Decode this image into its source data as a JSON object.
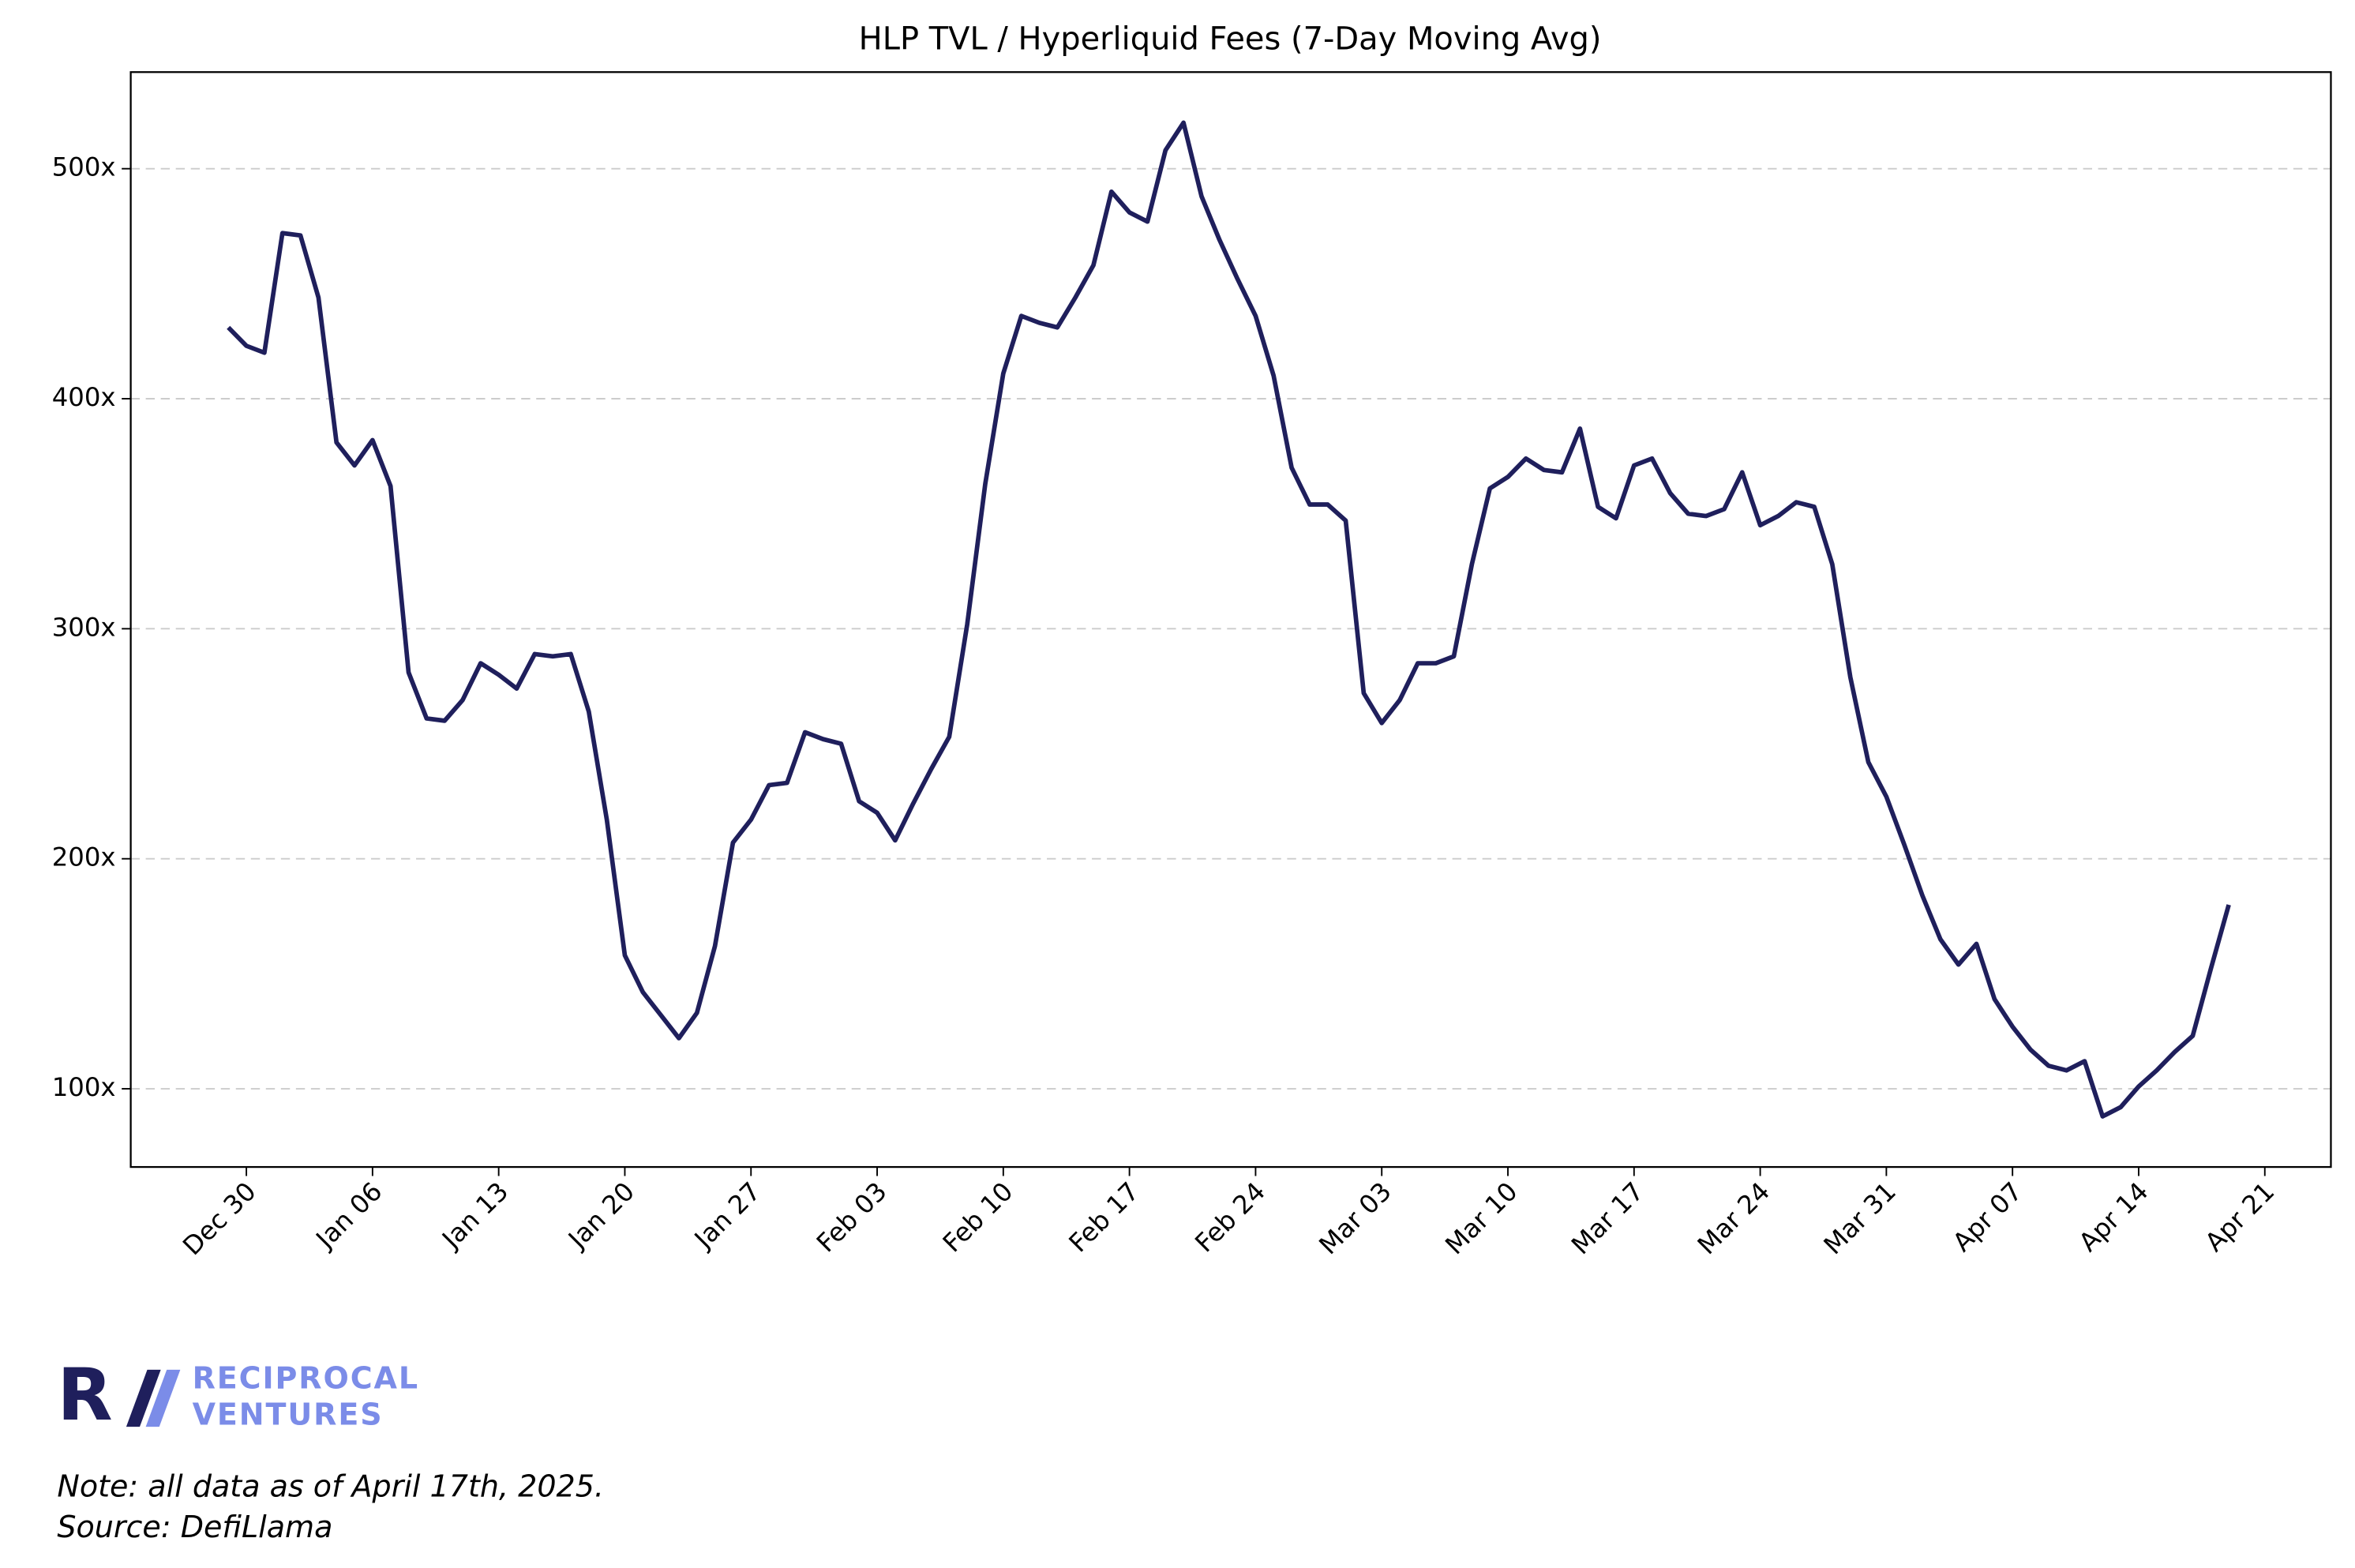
{
  "chart_data": {
    "type": "line",
    "title": "HLP TVL / Hyperliquid Fees (7-Day Moving Avg)",
    "x": [
      "Dec 29",
      "Dec 30",
      "Dec 31",
      "Jan 01",
      "Jan 02",
      "Jan 03",
      "Jan 04",
      "Jan 05",
      "Jan 06",
      "Jan 07",
      "Jan 08",
      "Jan 09",
      "Jan 10",
      "Jan 11",
      "Jan 12",
      "Jan 13",
      "Jan 14",
      "Jan 15",
      "Jan 16",
      "Jan 17",
      "Jan 18",
      "Jan 19",
      "Jan 20",
      "Jan 21",
      "Jan 22",
      "Jan 23",
      "Jan 24",
      "Jan 25",
      "Jan 26",
      "Jan 27",
      "Jan 28",
      "Jan 29",
      "Jan 30",
      "Jan 31",
      "Feb 01",
      "Feb 02",
      "Feb 03",
      "Feb 04",
      "Feb 05",
      "Feb 06",
      "Feb 07",
      "Feb 08",
      "Feb 09",
      "Feb 10",
      "Feb 11",
      "Feb 12",
      "Feb 13",
      "Feb 14",
      "Feb 15",
      "Feb 16",
      "Feb 17",
      "Feb 18",
      "Feb 19",
      "Feb 20",
      "Feb 21",
      "Feb 22",
      "Feb 23",
      "Feb 24",
      "Feb 25",
      "Feb 26",
      "Feb 27",
      "Feb 28",
      "Mar 01",
      "Mar 02",
      "Mar 03",
      "Mar 04",
      "Mar 05",
      "Mar 06",
      "Mar 07",
      "Mar 08",
      "Mar 09",
      "Mar 10",
      "Mar 11",
      "Mar 12",
      "Mar 13",
      "Mar 14",
      "Mar 15",
      "Mar 16",
      "Mar 17",
      "Mar 18",
      "Mar 19",
      "Mar 20",
      "Mar 21",
      "Mar 22",
      "Mar 23",
      "Mar 24",
      "Mar 25",
      "Mar 26",
      "Mar 27",
      "Mar 28",
      "Mar 29",
      "Mar 30",
      "Mar 31",
      "Apr 01",
      "Apr 02",
      "Apr 03",
      "Apr 04",
      "Apr 05",
      "Apr 06",
      "Apr 07",
      "Apr 08",
      "Apr 09",
      "Apr 10",
      "Apr 11",
      "Apr 12",
      "Apr 13",
      "Apr 14",
      "Apr 15",
      "Apr 16",
      "Apr 17",
      "Apr 18",
      "Apr 19",
      "Apr 20",
      "Apr 21"
    ],
    "series": [
      {
        "color": "#1f1f5c",
        "values": [
          431,
          423,
          420,
          472,
          471,
          444,
          381,
          371,
          382,
          362,
          281,
          261,
          260,
          269,
          285,
          280,
          274,
          289,
          288,
          289,
          264,
          217,
          158,
          142,
          132,
          122,
          133,
          162,
          207,
          217,
          232,
          233,
          255,
          252,
          250,
          225,
          220,
          208,
          224,
          239,
          253,
          302,
          363,
          411,
          436,
          433,
          431,
          444,
          458,
          490,
          481,
          477,
          508,
          520,
          488,
          469,
          452,
          436,
          410,
          370,
          354,
          354,
          347,
          272,
          259,
          269,
          285,
          285,
          288,
          328,
          361,
          366,
          374,
          369,
          368,
          387,
          353,
          348,
          371,
          374,
          359,
          350,
          349,
          352,
          368,
          345,
          349,
          355,
          353,
          328,
          279,
          242,
          227,
          206,
          184,
          165,
          154,
          163,
          139,
          127,
          117,
          110,
          108,
          112,
          88,
          92,
          101,
          108,
          116,
          123,
          152,
          180,
          null,
          null
        ]
      }
    ],
    "xticks": [
      "Dec 30",
      "Jan 06",
      "Jan 13",
      "Jan 20",
      "Jan 27",
      "Feb 03",
      "Feb 10",
      "Feb 17",
      "Feb 24",
      "Mar 03",
      "Mar 10",
      "Mar 17",
      "Mar 24",
      "Mar 31",
      "Apr 07",
      "Apr 14",
      "Apr 21"
    ],
    "ylim": [
      66,
      542
    ],
    "yticks": [
      {
        "value": 100,
        "label": "100x"
      },
      {
        "value": 200,
        "label": "200x"
      },
      {
        "value": 300,
        "label": "300x"
      },
      {
        "value": 400,
        "label": "400x"
      },
      {
        "value": 500,
        "label": "500x"
      }
    ],
    "grid": true
  },
  "footer": {
    "logo_mark": "R",
    "logo_line1": "RECIPROCAL",
    "logo_line2": "VENTURES",
    "note": "Note: all data as of April 17th, 2025.",
    "source": "Source: DefiLlama"
  }
}
